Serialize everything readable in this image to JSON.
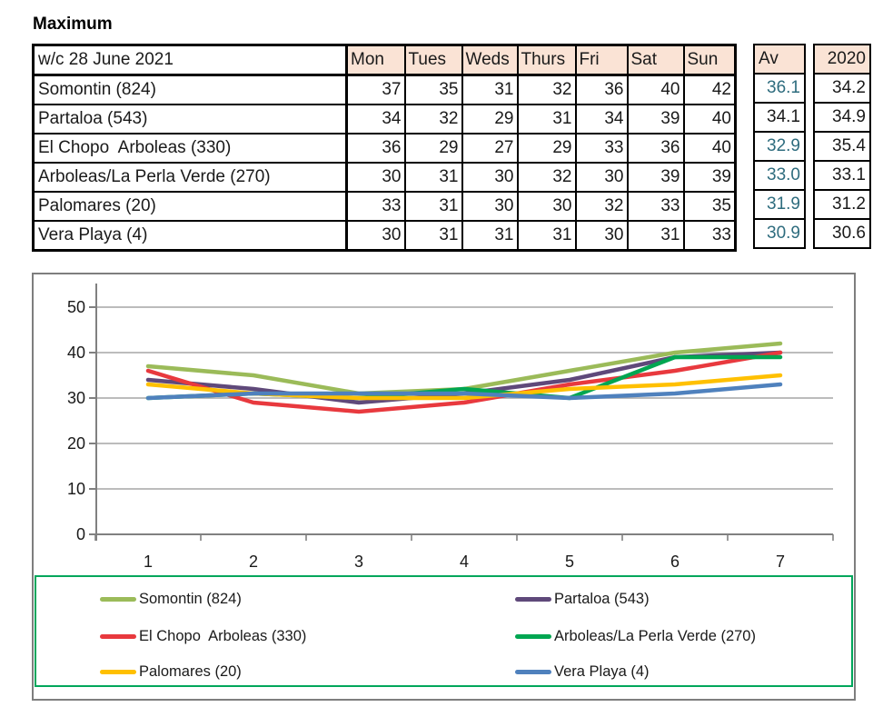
{
  "title": "Maximum",
  "table": {
    "week_label": "w/c 28 June 2021",
    "day_headers": [
      "Mon",
      "Tues",
      "Weds",
      "Thurs",
      "Fri",
      "Sat",
      "Sun"
    ],
    "av_header": "Av",
    "y2020_header": "2020",
    "header_fill": "#FAE3D5",
    "av_text_color": "#2E6C7E",
    "rows": [
      {
        "label": "Somontin (824)",
        "values": [
          37,
          35,
          31,
          32,
          36,
          40,
          42
        ],
        "av": "36.1",
        "av_color": "#2E6C7E",
        "y2020": "34.2"
      },
      {
        "label": "Partaloa (543)",
        "values": [
          34,
          32,
          29,
          31,
          34,
          39,
          40
        ],
        "av": "34.1",
        "av_color": "#1a1a1a",
        "y2020": "34.9"
      },
      {
        "label": "El Chopo  Arboleas (330)",
        "values": [
          36,
          29,
          27,
          29,
          33,
          36,
          40
        ],
        "av": "32.9",
        "av_color": "#2E6C7E",
        "y2020": "35.4"
      },
      {
        "label": "Arboleas/La Perla Verde (270)",
        "values": [
          30,
          31,
          30,
          32,
          30,
          39,
          39
        ],
        "av": "33.0",
        "av_color": "#2E6C7E",
        "y2020": "33.1"
      },
      {
        "label": "Palomares (20)",
        "values": [
          33,
          31,
          30,
          30,
          32,
          33,
          35
        ],
        "av": "31.9",
        "av_color": "#2E6C7E",
        "y2020": "31.2"
      },
      {
        "label": "Vera Playa (4)",
        "values": [
          30,
          31,
          31,
          31,
          30,
          31,
          33
        ],
        "av": "30.9",
        "av_color": "#2E6C7E",
        "y2020": "30.6"
      }
    ]
  },
  "chart_data": {
    "type": "line",
    "title": "",
    "xlabel": "",
    "ylabel": "",
    "x": [
      1,
      2,
      3,
      4,
      5,
      6,
      7
    ],
    "series": [
      {
        "name": "Somontin (824)",
        "color": "#9BBB59",
        "values": [
          37,
          35,
          31,
          32,
          36,
          40,
          42
        ]
      },
      {
        "name": "Partaloa (543)",
        "color": "#5F497A",
        "values": [
          34,
          32,
          29,
          31,
          34,
          39,
          40
        ]
      },
      {
        "name": "El Chopo  Arboleas (330)",
        "color": "#E8393E",
        "values": [
          36,
          29,
          27,
          29,
          33,
          36,
          40
        ]
      },
      {
        "name": "Arboleas/La Perla Verde (270)",
        "color": "#00A651",
        "values": [
          30,
          31,
          30,
          32,
          30,
          39,
          39
        ]
      },
      {
        "name": "Palomares (20)",
        "color": "#FFC000",
        "values": [
          33,
          31,
          30,
          30,
          32,
          33,
          35
        ]
      },
      {
        "name": "Vera Playa (4)",
        "color": "#4F81BD",
        "values": [
          30,
          31,
          31,
          31,
          30,
          31,
          33
        ]
      }
    ],
    "ylim": [
      0,
      55
    ],
    "yticks": [
      0,
      10,
      20,
      30,
      40,
      50
    ],
    "grid": true,
    "legend_position": "bottom",
    "legend_border_color": "#00A65B",
    "axis_color": "#808080",
    "gridline_color": "#A6A6A6"
  }
}
